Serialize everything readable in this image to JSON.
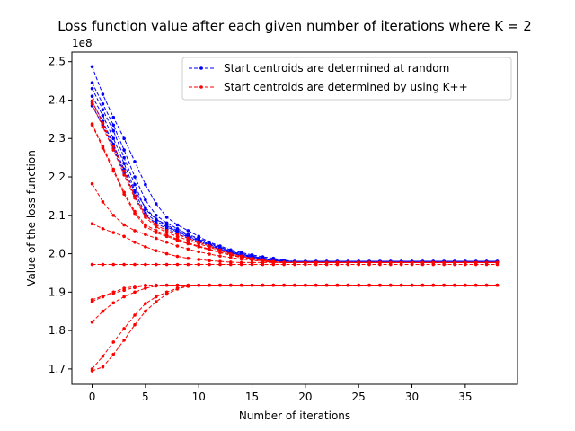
{
  "chart_data": {
    "type": "line",
    "title": "Loss function value after each given number of iterations where K = 2",
    "xlabel": "Number of iterations",
    "ylabel": "Value of the loss function",
    "y_offset_label": "1e8",
    "xlim": [
      -1.9,
      39.9
    ],
    "ylim": [
      1.66,
      2.525
    ],
    "x_ticks": [
      0,
      5,
      10,
      15,
      20,
      25,
      30,
      35
    ],
    "y_ticks": [
      1.7,
      1.8,
      1.9,
      2.0,
      2.1,
      2.2,
      2.3,
      2.4,
      2.5
    ],
    "grid": false,
    "legend": {
      "placement": "top-right",
      "entries": [
        {
          "name": "Start centroids are determined at random",
          "color": "#0000ff"
        },
        {
          "name": "Start centroids are determined by using K++",
          "color": "#ff0000"
        }
      ]
    },
    "series": [
      {
        "group": 0,
        "color": "#0000ff",
        "x_max": 38,
        "values": [
          2.487,
          2.415,
          2.355,
          2.3,
          2.24,
          2.18,
          2.13,
          2.095,
          2.075,
          2.06,
          2.045,
          2.03,
          2.02,
          2.01,
          2.003,
          1.997,
          1.992,
          1.988,
          1.983,
          1.98
        ]
      },
      {
        "group": 0,
        "color": "#0000ff",
        "x_max": 38,
        "values": [
          2.445,
          2.39,
          2.335,
          2.27,
          2.2,
          2.14,
          2.1,
          2.08,
          2.065,
          2.05,
          2.04,
          2.028,
          2.017,
          2.007,
          2.0,
          1.994,
          1.989,
          1.985,
          1.981,
          1.98
        ]
      },
      {
        "group": 0,
        "color": "#0000ff",
        "x_max": 38,
        "values": [
          2.43,
          2.375,
          2.32,
          2.25,
          2.18,
          2.115,
          2.09,
          2.075,
          2.06,
          2.048,
          2.037,
          2.026,
          2.015,
          2.006,
          1.999,
          1.993,
          1.988,
          1.984,
          1.981,
          1.98
        ]
      },
      {
        "group": 0,
        "color": "#0000ff",
        "x_max": 38,
        "values": [
          2.41,
          2.36,
          2.3,
          2.235,
          2.165,
          2.12,
          2.09,
          2.072,
          2.058,
          2.045,
          2.035,
          2.024,
          2.013,
          2.004,
          1.997,
          1.992,
          1.987,
          1.983,
          1.98,
          1.98
        ]
      },
      {
        "group": 0,
        "color": "#0000ff",
        "x_max": 38,
        "values": [
          2.395,
          2.345,
          2.285,
          2.22,
          2.16,
          2.105,
          2.085,
          2.07,
          2.056,
          2.043,
          2.033,
          2.022,
          2.012,
          2.003,
          1.996,
          1.991,
          1.986,
          1.982,
          1.98,
          1.98
        ]
      },
      {
        "group": 0,
        "color": "#0000ff",
        "x_max": 38,
        "values": [
          2.385,
          2.335,
          2.275,
          2.21,
          2.15,
          2.1,
          2.08,
          2.065,
          2.052,
          2.04,
          2.03,
          2.02,
          2.01,
          2.002,
          1.995,
          1.99,
          1.985,
          1.981,
          1.98,
          1.98
        ]
      },
      {
        "group": 1,
        "color": "#ff0000",
        "x_max": 38,
        "values": [
          2.398,
          2.34,
          2.28,
          2.215,
          2.15,
          2.1,
          2.075,
          2.06,
          2.05,
          2.04,
          2.03,
          2.02,
          2.01,
          2.0,
          1.994,
          1.988,
          1.984,
          1.98,
          1.978,
          1.977
        ]
      },
      {
        "group": 1,
        "color": "#ff0000",
        "x_max": 38,
        "values": [
          2.39,
          2.33,
          2.27,
          2.205,
          2.145,
          2.095,
          2.07,
          2.055,
          2.045,
          2.035,
          2.026,
          2.017,
          2.008,
          1.999,
          1.993,
          1.987,
          1.983,
          1.979,
          1.977,
          1.977
        ]
      },
      {
        "group": 1,
        "color": "#ff0000",
        "x_max": 38,
        "values": [
          2.338,
          2.28,
          2.22,
          2.16,
          2.11,
          2.075,
          2.06,
          2.048,
          2.038,
          2.028,
          2.02,
          2.012,
          2.004,
          1.997,
          1.991,
          1.986,
          1.982,
          1.979,
          1.977,
          1.977
        ]
      },
      {
        "group": 1,
        "color": "#ff0000",
        "x_max": 38,
        "values": [
          2.335,
          2.275,
          2.215,
          2.155,
          2.105,
          2.07,
          2.055,
          2.045,
          2.035,
          2.026,
          2.018,
          2.01,
          2.003,
          1.996,
          1.99,
          1.985,
          1.981,
          1.978,
          1.977,
          1.977
        ]
      },
      {
        "group": 1,
        "color": "#ff0000",
        "x_max": 38,
        "values": [
          2.182,
          2.135,
          2.1,
          2.075,
          2.06,
          2.05,
          2.04,
          2.03,
          2.02,
          2.012,
          2.005,
          1.999,
          1.994,
          1.99,
          1.986,
          1.983,
          1.98,
          1.978,
          1.977,
          1.977
        ]
      },
      {
        "group": 1,
        "color": "#ff0000",
        "x_max": 38,
        "values": [
          2.078,
          2.065,
          2.055,
          2.045,
          2.03,
          2.018,
          2.008,
          2.0,
          1.993,
          1.988,
          1.985,
          1.982,
          1.98,
          1.978,
          1.977,
          1.977
        ]
      },
      {
        "group": 1,
        "color": "#ff0000",
        "x_max": 38,
        "values": [
          1.972,
          1.972
        ]
      },
      {
        "group": 1,
        "color": "#ff0000",
        "x_max": 38,
        "values": [
          1.88,
          1.89,
          1.9,
          1.91,
          1.915,
          1.918
        ]
      },
      {
        "group": 1,
        "color": "#ff0000",
        "x_max": 38,
        "values": [
          1.875,
          1.888,
          1.897,
          1.905,
          1.912,
          1.917,
          1.918
        ]
      },
      {
        "group": 1,
        "color": "#ff0000",
        "x_max": 38,
        "values": [
          1.822,
          1.85,
          1.872,
          1.888,
          1.9,
          1.91,
          1.916,
          1.918
        ]
      },
      {
        "group": 1,
        "color": "#ff0000",
        "x_max": 38,
        "values": [
          1.7,
          1.733,
          1.77,
          1.805,
          1.84,
          1.87,
          1.888,
          1.9,
          1.91,
          1.916,
          1.918
        ]
      },
      {
        "group": 1,
        "color": "#ff0000",
        "x_max": 38,
        "values": [
          1.695,
          1.705,
          1.738,
          1.775,
          1.815,
          1.85,
          1.875,
          1.895,
          1.908,
          1.915,
          1.918
        ]
      }
    ]
  }
}
